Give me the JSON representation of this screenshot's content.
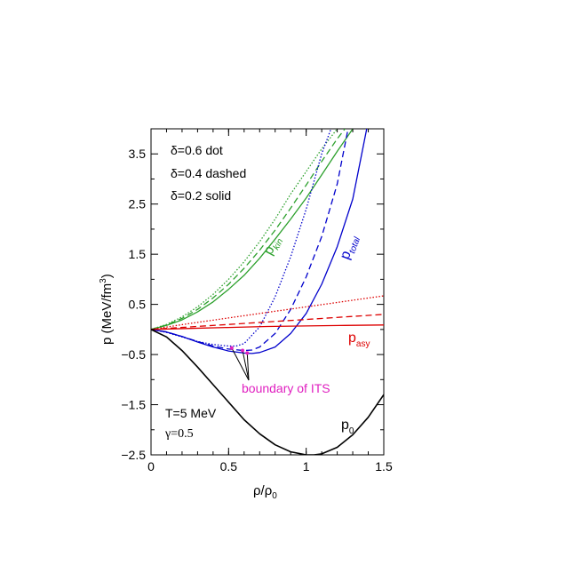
{
  "chart_data": {
    "type": "line",
    "xlabel": "ρ/ρ",
    "xlabel_sub": "0",
    "ylabel": "p (MeV/fm",
    "ylabel_sup": "3",
    "ylabel_close": ")",
    "xlim": [
      0,
      1.5
    ],
    "ylim": [
      -2.5,
      4.0
    ],
    "x_ticks": [
      0,
      0.5,
      1,
      1.5
    ],
    "x_tick_labels": [
      "0",
      "0.5",
      "1",
      "1.5"
    ],
    "y_ticks": [
      -2.5,
      -1.5,
      -0.5,
      0.5,
      1.5,
      2.5,
      3.5
    ],
    "y_tick_labels": [
      "−2.5",
      "−1.5",
      "−0.5",
      "0.5",
      "1.5",
      "2.5",
      "3.5"
    ],
    "grid": false,
    "legend_lines": [
      "δ=0.6 dot",
      "δ=0.4 dashed",
      "δ=0.2 solid"
    ],
    "params": [
      "T=5 MeV",
      "γ=0.5"
    ],
    "curve_labels": {
      "kin": {
        "main": "p",
        "sub": "kin",
        "color": "#2ca02c"
      },
      "total": {
        "main": "p",
        "sub": "total",
        "color": "#0000cc"
      },
      "asy": {
        "main": "p",
        "sub": "asy",
        "color": "#dd0000"
      },
      "zero": {
        "main": "p",
        "sub": "0",
        "color": "#000000"
      }
    },
    "annotation": {
      "text": "boundary of ITS",
      "color": "#e020c0",
      "points": [
        [
          0.52,
          -0.37
        ],
        [
          0.59,
          -0.42
        ],
        [
          0.62,
          -0.47
        ]
      ]
    },
    "series": [
      {
        "group": "kin",
        "style": "dotted",
        "color": "#2ca02c",
        "x": [
          0,
          0.1,
          0.2,
          0.3,
          0.4,
          0.5,
          0.6,
          0.7,
          0.8,
          0.9,
          1.0,
          1.1,
          1.2,
          1.22
        ],
        "y": [
          0,
          0.1,
          0.25,
          0.45,
          0.7,
          1.0,
          1.35,
          1.75,
          2.2,
          2.7,
          3.15,
          3.6,
          4.0,
          4.1
        ]
      },
      {
        "group": "kin",
        "style": "dashed",
        "color": "#2ca02c",
        "x": [
          0,
          0.1,
          0.2,
          0.3,
          0.4,
          0.5,
          0.6,
          0.7,
          0.8,
          0.9,
          1.0,
          1.1,
          1.2,
          1.25
        ],
        "y": [
          0,
          0.09,
          0.22,
          0.4,
          0.63,
          0.9,
          1.22,
          1.58,
          1.98,
          2.42,
          2.88,
          3.35,
          3.8,
          4.0
        ]
      },
      {
        "group": "kin",
        "style": "solid",
        "color": "#2ca02c",
        "x": [
          0,
          0.1,
          0.2,
          0.3,
          0.4,
          0.5,
          0.6,
          0.7,
          0.8,
          0.9,
          1.0,
          1.1,
          1.2,
          1.3
        ],
        "y": [
          0,
          0.08,
          0.19,
          0.35,
          0.55,
          0.8,
          1.08,
          1.42,
          1.8,
          2.2,
          2.62,
          3.08,
          3.55,
          4.0
        ]
      },
      {
        "group": "total",
        "style": "dotted",
        "color": "#0000cc",
        "x": [
          0,
          0.1,
          0.2,
          0.3,
          0.4,
          0.5,
          0.55,
          0.6,
          0.7,
          0.8,
          0.9,
          1.0,
          1.1,
          1.16
        ],
        "y": [
          0,
          -0.06,
          -0.15,
          -0.24,
          -0.3,
          -0.33,
          -0.33,
          -0.28,
          0.05,
          0.65,
          1.45,
          2.4,
          3.5,
          4.0
        ]
      },
      {
        "group": "total",
        "style": "dashed",
        "color": "#0000cc",
        "x": [
          0,
          0.1,
          0.2,
          0.3,
          0.4,
          0.5,
          0.6,
          0.65,
          0.7,
          0.8,
          0.9,
          1.0,
          1.1,
          1.2,
          1.27
        ],
        "y": [
          0,
          -0.05,
          -0.14,
          -0.24,
          -0.33,
          -0.39,
          -0.42,
          -0.41,
          -0.35,
          -0.08,
          0.4,
          1.05,
          1.85,
          2.9,
          4.0
        ]
      },
      {
        "group": "total",
        "style": "solid",
        "color": "#0000cc",
        "x": [
          0,
          0.1,
          0.2,
          0.3,
          0.4,
          0.5,
          0.6,
          0.65,
          0.7,
          0.8,
          0.9,
          1.0,
          1.1,
          1.2,
          1.3,
          1.39
        ],
        "y": [
          0,
          -0.05,
          -0.14,
          -0.25,
          -0.35,
          -0.43,
          -0.47,
          -0.48,
          -0.46,
          -0.35,
          -0.08,
          0.32,
          0.9,
          1.65,
          2.6,
          4.0
        ]
      },
      {
        "group": "asy",
        "style": "dotted",
        "color": "#dd0000",
        "x": [
          0,
          0.25,
          0.5,
          0.75,
          1.0,
          1.25,
          1.5
        ],
        "y": [
          0,
          0.12,
          0.23,
          0.34,
          0.45,
          0.56,
          0.67
        ]
      },
      {
        "group": "asy",
        "style": "dashed",
        "color": "#dd0000",
        "x": [
          0,
          0.25,
          0.5,
          0.75,
          1.0,
          1.25,
          1.5
        ],
        "y": [
          0,
          0.05,
          0.1,
          0.15,
          0.2,
          0.25,
          0.3
        ]
      },
      {
        "group": "asy",
        "style": "solid",
        "color": "#dd0000",
        "x": [
          0,
          0.25,
          0.5,
          0.75,
          1.0,
          1.25,
          1.5
        ],
        "y": [
          0,
          0.02,
          0.04,
          0.06,
          0.07,
          0.08,
          0.09
        ]
      },
      {
        "group": "zero",
        "style": "solid",
        "color": "#000000",
        "x": [
          0,
          0.1,
          0.2,
          0.3,
          0.4,
          0.5,
          0.6,
          0.7,
          0.8,
          0.9,
          1.0,
          1.05,
          1.1,
          1.2,
          1.3,
          1.4,
          1.5
        ],
        "y": [
          0,
          -0.15,
          -0.42,
          -0.75,
          -1.1,
          -1.45,
          -1.8,
          -2.08,
          -2.3,
          -2.44,
          -2.5,
          -2.5,
          -2.48,
          -2.35,
          -2.1,
          -1.75,
          -1.3
        ]
      }
    ]
  }
}
